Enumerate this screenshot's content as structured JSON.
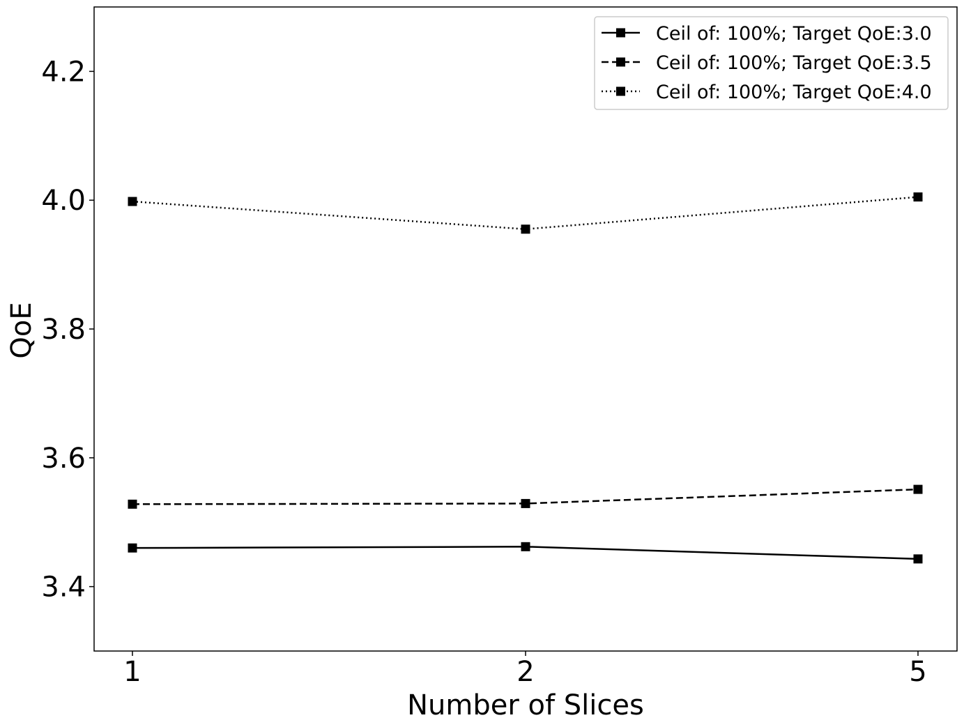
{
  "chart_data": {
    "type": "line",
    "title": "",
    "xlabel": "Number of Slices",
    "ylabel": "QoE",
    "categories": [
      "1",
      "2",
      "5"
    ],
    "ylim": [
      3.3,
      4.3
    ],
    "yticks": [
      "3.4",
      "3.6",
      "3.8",
      "4.0",
      "4.2"
    ],
    "grid": false,
    "legend_position": "top-right",
    "series": [
      {
        "name": "Ceil of: 100%; Target QoE:3.0",
        "linestyle": "solid",
        "color": "#000000",
        "marker": "square",
        "values": [
          3.46,
          3.462,
          3.443
        ]
      },
      {
        "name": "Ceil of: 100%; Target QoE:3.5",
        "linestyle": "dashed",
        "color": "#000000",
        "marker": "square",
        "values": [
          3.528,
          3.529,
          3.551
        ]
      },
      {
        "name": "Ceil of: 100%; Target QoE:4.0",
        "linestyle": "dotted",
        "color": "#000000",
        "marker": "square",
        "values": [
          3.998,
          3.955,
          4.005
        ]
      }
    ]
  }
}
